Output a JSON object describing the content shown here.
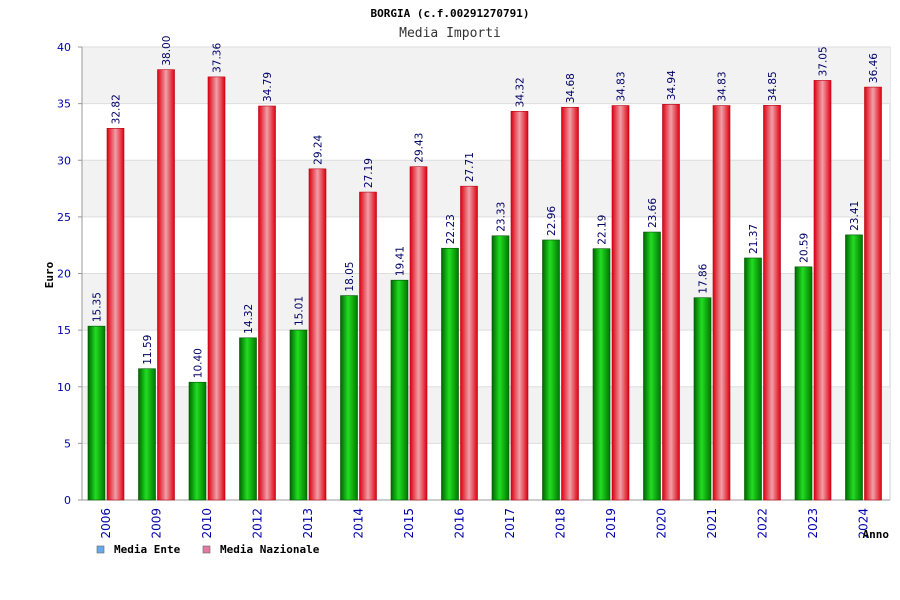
{
  "chart_data": {
    "type": "bar",
    "title": "BORGIA (c.f.00291270791)",
    "subtitle": "Media Importi",
    "xlabel": "Anno",
    "ylabel": "Euro",
    "ylim": [
      0,
      40
    ],
    "yticks": [
      0,
      5,
      10,
      15,
      20,
      25,
      30,
      35,
      40
    ],
    "grid": true,
    "legend_position": "bottom-left",
    "categories": [
      "2006",
      "2009",
      "2010",
      "2012",
      "2013",
      "2014",
      "2015",
      "2016",
      "2017",
      "2018",
      "2019",
      "2020",
      "2021",
      "2022",
      "2023",
      "2024"
    ],
    "series": [
      {
        "name": "Media Ente",
        "color": "#00cc00",
        "legend_color": "#66aaee",
        "values": [
          15.35,
          11.59,
          10.4,
          14.32,
          15.01,
          18.05,
          19.41,
          22.23,
          23.33,
          22.96,
          22.19,
          23.66,
          17.86,
          21.37,
          20.59,
          23.41
        ],
        "labels": [
          "15.35",
          "11.59",
          "10.40",
          "14.32",
          "15.01",
          "18.05",
          "19.41",
          "22.23",
          "23.33",
          "22.96",
          "22.19",
          "23.66",
          "17.86",
          "21.37",
          "20.59",
          "23.41"
        ]
      },
      {
        "name": "Media Nazionale",
        "color": "#ee1122",
        "legend_color": "#e07aa0",
        "values": [
          32.82,
          38.0,
          37.36,
          34.79,
          29.24,
          27.19,
          29.43,
          27.71,
          34.32,
          34.68,
          34.83,
          34.94,
          34.83,
          34.85,
          37.05,
          36.46
        ],
        "labels": [
          "32.82",
          "38.00",
          "37.36",
          "34.79",
          "29.24",
          "27.19",
          "29.43",
          "27.71",
          "34.32",
          "34.68",
          "34.83",
          "34.94",
          "34.83",
          "34.85",
          "37.05",
          "36.46"
        ]
      }
    ]
  }
}
